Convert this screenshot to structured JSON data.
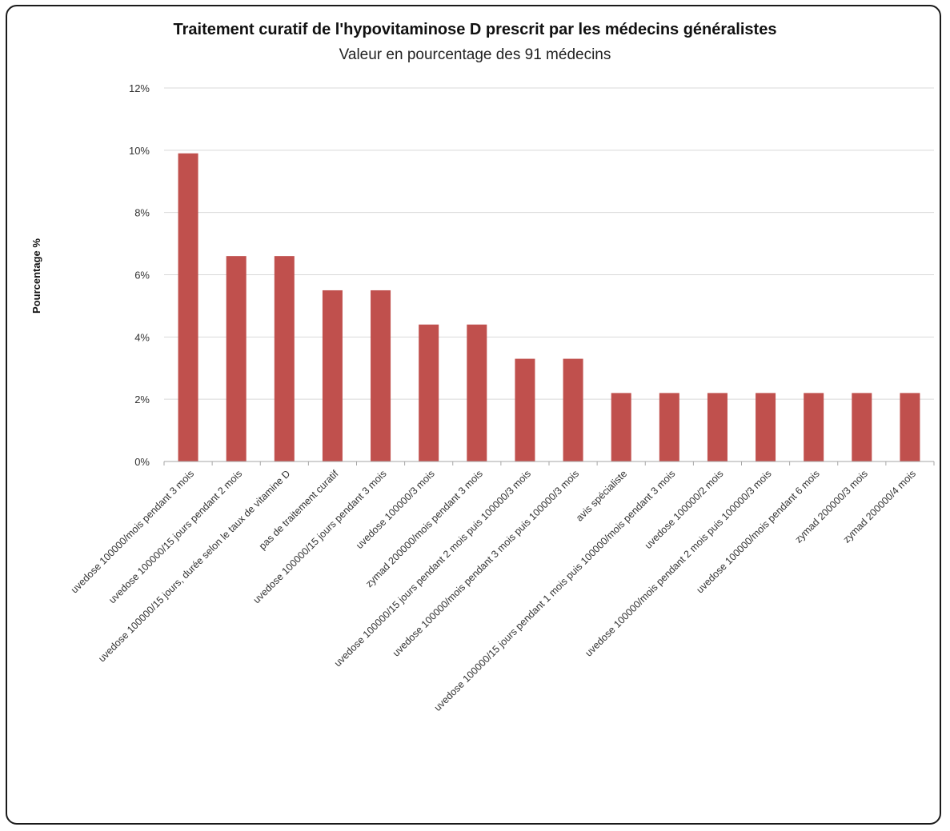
{
  "chart_data": {
    "type": "bar",
    "title": "Traitement curatif de l'hypovitaminose D prescrit par les médecins généralistes",
    "subtitle": "Valeur en pourcentage des 91 médecins",
    "xlabel": "",
    "ylabel": "Pourcentage %",
    "ylim": [
      0,
      12
    ],
    "yticks": [
      0,
      2,
      4,
      6,
      8,
      10,
      12
    ],
    "ytick_labels": [
      "0%",
      "2%",
      "4%",
      "6%",
      "8%",
      "10%",
      "12%"
    ],
    "grid": true,
    "legend": "none",
    "bar_color": "#c0504d",
    "categories": [
      "uvedose 100000/mois pendant 3 mois",
      "uvedose 100000/15 jours pendant 2 mois",
      "uvedose 100000/15 jours, durée selon le taux de vitamine D",
      "pas de traitement curatif",
      "uvedose 100000/15 jours pendant 3 mois",
      "uvedose 100000/3 mois",
      "zymad 200000/mois pendant 3 mois",
      "uvedose 100000/15 jours pendant 2 mois puis 100000/3 mois",
      "uvedose 100000/mois pendant 3 mois puis 100000/3 mois",
      "avis spécialiste",
      "uvedose 100000/15 jours pendant 1 mois puis 100000/mois pendant 3 mois",
      "uvedose 100000/2 mois",
      "uvedose 100000/mois pendant 2 mois puis 100000/3 mois",
      "uvedose 100000/mois pendant 6 mois",
      "zymad 200000/3 mois",
      "zymad 200000/4 mois"
    ],
    "values": [
      9.9,
      6.6,
      6.6,
      5.5,
      5.5,
      4.4,
      4.4,
      3.3,
      3.3,
      2.2,
      2.2,
      2.2,
      2.2,
      2.2,
      2.2,
      2.2
    ]
  }
}
